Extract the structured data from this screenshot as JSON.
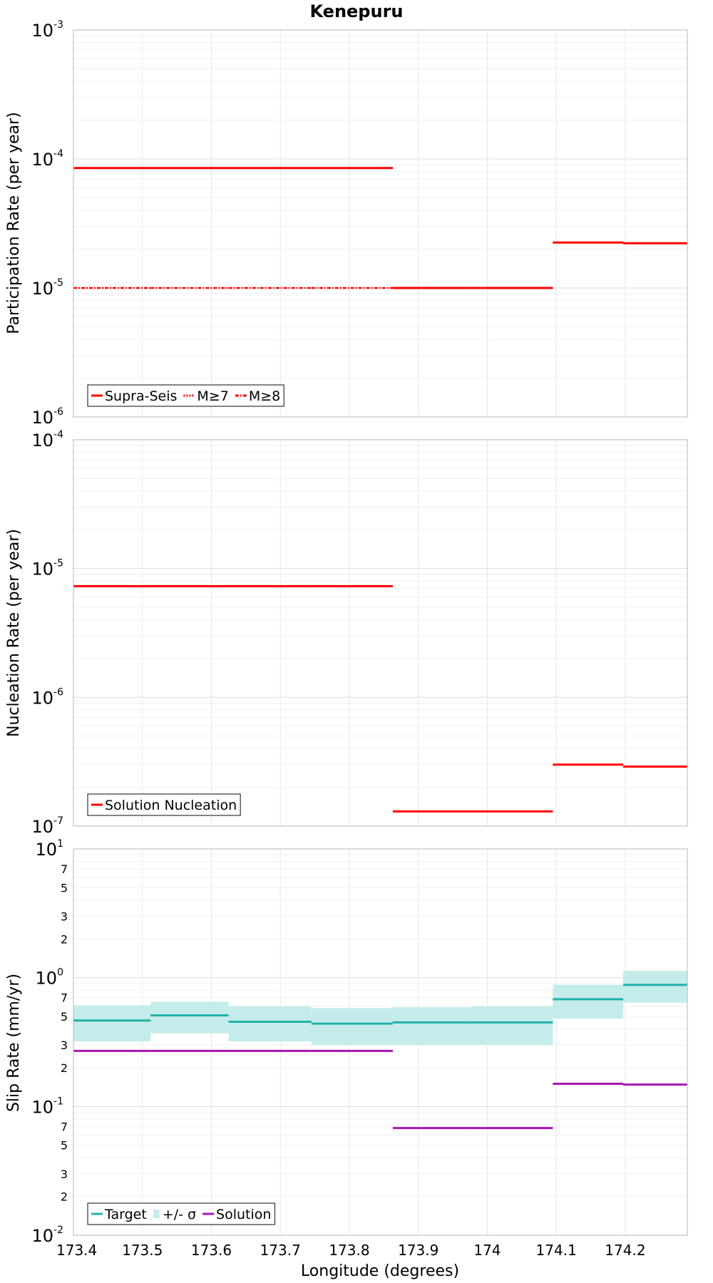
{
  "title": "Kenepuru",
  "xlabel": "Longitude (degrees)",
  "x_ticks": [
    "173.4",
    "173.5",
    "173.6",
    "173.7",
    "173.8",
    "173.9",
    "174",
    "174.1",
    "174.2"
  ],
  "chart_data": [
    {
      "type": "line",
      "ylabel": "Participation Rate (per year)",
      "yscale": "log",
      "ylim": [
        1e-06,
        0.001
      ],
      "xlim": [
        173.4,
        174.29
      ],
      "y_tick_labels": [
        {
          "base": "10",
          "exp": "-6"
        },
        {
          "base": "10",
          "exp": "-5"
        },
        {
          "base": "10",
          "exp": "-4"
        },
        {
          "base": "10",
          "exp": "-3"
        }
      ],
      "legend": [
        "Supra-Seis",
        "M≥7",
        "M≥8"
      ],
      "legend_position": "bottom-left",
      "grid": true,
      "series": [
        {
          "name": "Supra-Seis",
          "color": "#ff0000",
          "style": "solid",
          "points": [
            [
              173.4,
              173.512,
              8.5e-05
            ],
            [
              173.512,
              173.625,
              8.5e-05
            ],
            [
              173.625,
              173.745,
              8.5e-05
            ],
            [
              173.745,
              173.863,
              8.5e-05
            ],
            [
              173.863,
              173.977,
              1e-05
            ],
            [
              173.977,
              174.095,
              1e-05
            ],
            [
              174.095,
              174.197,
              2.25e-05
            ],
            [
              174.197,
              174.29,
              2.22e-05
            ]
          ]
        },
        {
          "name": "M≥7",
          "color": "#ff0000",
          "style": "dotted",
          "points": [
            [
              173.4,
              173.512,
              8.5e-05
            ],
            [
              173.512,
              173.625,
              8.5e-05
            ],
            [
              173.625,
              173.745,
              8.5e-05
            ],
            [
              173.745,
              173.863,
              8.5e-05
            ],
            [
              173.863,
              173.977,
              1e-05
            ],
            [
              173.977,
              174.095,
              1e-05
            ],
            [
              174.095,
              174.197,
              2.25e-05
            ],
            [
              174.197,
              174.29,
              2.22e-05
            ]
          ]
        },
        {
          "name": "M≥8",
          "color": "#ff0000",
          "style": "dashdot",
          "points": [
            [
              173.4,
              173.512,
              1e-05
            ],
            [
              173.512,
              173.625,
              1e-05
            ],
            [
              173.625,
              173.745,
              1e-05
            ],
            [
              173.745,
              173.863,
              1e-05
            ]
          ]
        }
      ]
    },
    {
      "type": "line",
      "ylabel": "Nucleation Rate (per year)",
      "yscale": "log",
      "ylim": [
        1e-07,
        0.0001
      ],
      "xlim": [
        173.4,
        174.29
      ],
      "y_tick_labels": [
        {
          "base": "10",
          "exp": "-7"
        },
        {
          "base": "10",
          "exp": "-6"
        },
        {
          "base": "10",
          "exp": "-5"
        },
        {
          "base": "10",
          "exp": "-4"
        }
      ],
      "legend": [
        "Solution Nucleation"
      ],
      "legend_position": "bottom-left",
      "grid": true,
      "series": [
        {
          "name": "Solution Nucleation",
          "color": "#ff0000",
          "style": "solid",
          "points": [
            [
              173.4,
              173.512,
              7.3e-06
            ],
            [
              173.512,
              173.625,
              7.3e-06
            ],
            [
              173.625,
              173.745,
              7.3e-06
            ],
            [
              173.745,
              173.863,
              7.3e-06
            ],
            [
              173.863,
              173.977,
              1.3e-07
            ],
            [
              173.977,
              174.095,
              1.3e-07
            ],
            [
              174.095,
              174.197,
              3e-07
            ],
            [
              174.197,
              174.29,
              2.9e-07
            ]
          ]
        }
      ]
    },
    {
      "type": "line",
      "ylabel": "Slip Rate (mm/yr)",
      "yscale": "log",
      "ylim": [
        0.01,
        10
      ],
      "xlim": [
        173.4,
        174.29
      ],
      "y_tick_labels": [
        {
          "base": "10",
          "exp": "-2"
        },
        {
          "base": "10",
          "exp": "-1"
        },
        {
          "base": "10",
          "exp": "0"
        },
        {
          "base": "10",
          "exp": "1"
        }
      ],
      "y_minor_labels": [
        {
          "value": 0.02,
          "label": "2"
        },
        {
          "value": 0.03,
          "label": "3"
        },
        {
          "value": 0.05,
          "label": "5"
        },
        {
          "value": 0.07,
          "label": "7"
        },
        {
          "value": 0.2,
          "label": "2"
        },
        {
          "value": 0.3,
          "label": "3"
        },
        {
          "value": 0.5,
          "label": "5"
        },
        {
          "value": 0.7,
          "label": "7"
        },
        {
          "value": 2,
          "label": "2"
        },
        {
          "value": 3,
          "label": "3"
        },
        {
          "value": 5,
          "label": "5"
        },
        {
          "value": 7,
          "label": "7"
        }
      ],
      "legend": [
        "Target",
        "+/- σ",
        "Solution"
      ],
      "legend_position": "bottom-left",
      "grid": true,
      "band": {
        "name": "+/- σ",
        "color": "#c4ecea",
        "points": [
          [
            173.4,
            173.512,
            0.32,
            0.61
          ],
          [
            173.512,
            173.625,
            0.37,
            0.65
          ],
          [
            173.625,
            173.745,
            0.32,
            0.6
          ],
          [
            173.745,
            173.863,
            0.3,
            0.58
          ],
          [
            173.863,
            173.977,
            0.3,
            0.59
          ],
          [
            173.977,
            174.095,
            0.3,
            0.6
          ],
          [
            174.095,
            174.197,
            0.48,
            0.88
          ],
          [
            174.197,
            174.29,
            0.64,
            1.13
          ]
        ]
      },
      "series": [
        {
          "name": "Target",
          "color": "#20b2aa",
          "style": "solid",
          "points": [
            [
              173.4,
              173.512,
              0.465
            ],
            [
              173.512,
              173.625,
              0.51
            ],
            [
              173.625,
              173.745,
              0.455
            ],
            [
              173.745,
              173.863,
              0.44
            ],
            [
              173.863,
              173.977,
              0.45
            ],
            [
              173.977,
              174.095,
              0.45
            ],
            [
              174.095,
              174.197,
              0.68
            ],
            [
              174.197,
              174.29,
              0.88
            ]
          ]
        },
        {
          "name": "Solution",
          "color": "#aa14b4",
          "style": "solid",
          "points": [
            [
              173.4,
              173.512,
              0.27
            ],
            [
              173.512,
              173.625,
              0.27
            ],
            [
              173.625,
              173.745,
              0.27
            ],
            [
              173.745,
              173.863,
              0.27
            ],
            [
              173.863,
              173.977,
              0.068
            ],
            [
              173.977,
              174.095,
              0.068
            ],
            [
              174.095,
              174.197,
              0.15
            ],
            [
              174.197,
              174.29,
              0.148
            ]
          ]
        }
      ]
    }
  ]
}
